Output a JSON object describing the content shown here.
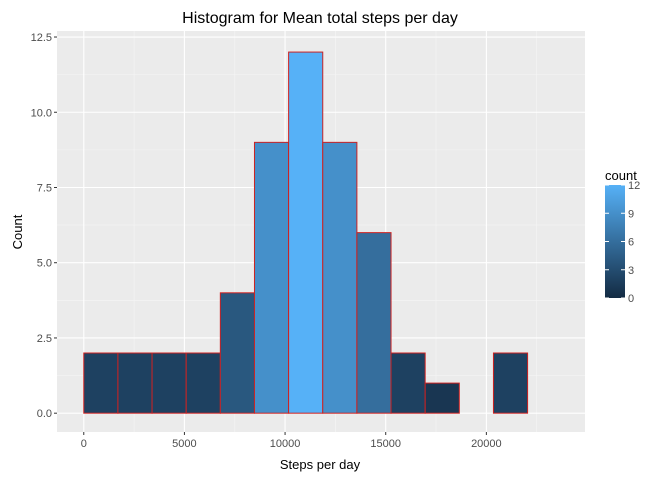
{
  "chart_data": {
    "type": "bar",
    "title": "Histogram for Mean total steps per day",
    "xlabel": "Steps per day",
    "ylabel": "Count",
    "bin_edges": [
      0,
      1696,
      3392,
      5088,
      6784,
      8480,
      10176,
      11872,
      13568,
      15264,
      16960,
      18656,
      20352,
      22048,
      23744
    ],
    "values": [
      2,
      2,
      2,
      2,
      4,
      9,
      12,
      9,
      6,
      2,
      1,
      0,
      2,
      0
    ],
    "xlim": [
      -1330,
      24900
    ],
    "ylim": [
      -0.625,
      12.7
    ],
    "x_ticks": [
      0,
      5000,
      10000,
      15000,
      20000
    ],
    "x_tick_labels": [
      "0",
      "5000",
      "10000",
      "15000",
      "20000"
    ],
    "y_ticks": [
      0,
      2.5,
      5,
      7.5,
      10,
      12.5
    ],
    "y_tick_labels": [
      "0.0",
      "2.5",
      "5.0",
      "7.5",
      "10.0",
      "12.5"
    ],
    "grid": true,
    "bar_outline_color": "#CC2222",
    "panel_background": "#EBEBEB",
    "legend": {
      "title": "count",
      "position": "right",
      "min": 0,
      "max": 12,
      "ticks": [
        0,
        3,
        6,
        9,
        12
      ],
      "tick_labels": [
        "0",
        "3",
        "6",
        "9",
        "12"
      ],
      "low_color": "#132B43",
      "high_color": "#56B1F7"
    }
  }
}
